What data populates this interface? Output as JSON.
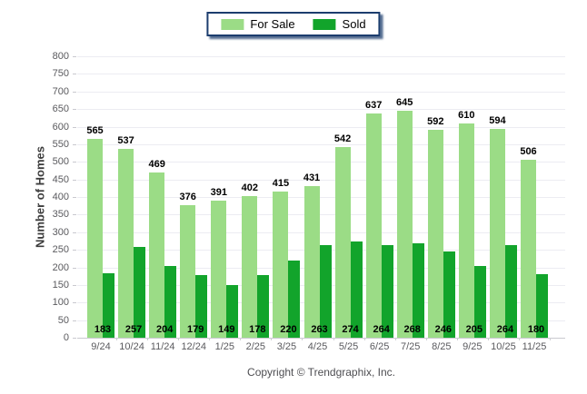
{
  "legend": {
    "items": [
      {
        "label": "For Sale",
        "color": "#9bdc86"
      },
      {
        "label": "Sold",
        "color": "#12a42b"
      }
    ]
  },
  "footer": {
    "copyright": "Copyright © Trendgraphix, Inc."
  },
  "colors": {
    "for_sale": "#9bdc86",
    "sold": "#12a42b",
    "legend_border": "#1c3d6e",
    "gridline": "#ececf2",
    "axis_line": "#c9c9cf",
    "tick_text": "#5a5a5e",
    "value_label_text": "#000000",
    "background": "#ffffff"
  },
  "chart_data": {
    "type": "bar",
    "title": "",
    "categories": [
      "9/24",
      "10/24",
      "11/24",
      "12/24",
      "1/25",
      "2/25",
      "3/25",
      "4/25",
      "5/25",
      "6/25",
      "7/25",
      "8/25",
      "9/25",
      "10/25",
      "11/25"
    ],
    "series": [
      {
        "name": "For Sale",
        "color": "#9bdc86",
        "values": [
          565,
          537,
          469,
          376,
          391,
          402,
          415,
          431,
          542,
          637,
          645,
          592,
          610,
          594,
          506
        ]
      },
      {
        "name": "Sold",
        "color": "#12a42b",
        "values": [
          183,
          257,
          204,
          179,
          149,
          178,
          220,
          263,
          274,
          264,
          268,
          246,
          205,
          264,
          180
        ]
      }
    ],
    "xlabel": "",
    "ylabel": "Number of Homes",
    "ylim": [
      0,
      800
    ],
    "ytick_step": 50,
    "grid": true,
    "legend_position": "top-center",
    "value_labels": true
  }
}
